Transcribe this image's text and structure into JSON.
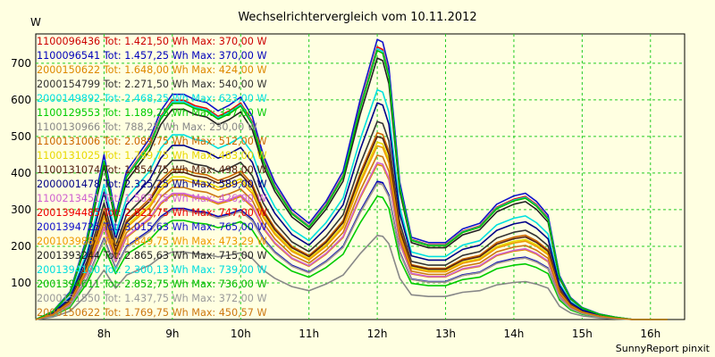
{
  "chart_data": {
    "type": "line",
    "title": "Wechselrichtervergleich vom 10.11.2012",
    "ylabel": "W",
    "footer": "SunnyReport pinxit",
    "xlim": [
      7.0,
      16.5
    ],
    "ylim": [
      0,
      780
    ],
    "grid": true,
    "legend_position": "top-left",
    "x_ticks": [
      {
        "value": 8,
        "label": "8h"
      },
      {
        "value": 9,
        "label": "9h"
      },
      {
        "value": 10,
        "label": "10h"
      },
      {
        "value": 11,
        "label": "11h"
      },
      {
        "value": 12,
        "label": "12h"
      },
      {
        "value": 13,
        "label": "13h"
      },
      {
        "value": 14,
        "label": "14h"
      },
      {
        "value": 15,
        "label": "15h"
      },
      {
        "value": 16,
        "label": "16h"
      }
    ],
    "y_ticks": [
      100,
      200,
      300,
      400,
      500,
      600,
      700
    ],
    "x": [
      7.0,
      7.25,
      7.5,
      7.75,
      8.0,
      8.17,
      8.33,
      8.5,
      8.67,
      8.83,
      9.0,
      9.17,
      9.33,
      9.5,
      9.67,
      9.83,
      10.0,
      10.17,
      10.33,
      10.5,
      10.75,
      11.0,
      11.25,
      11.5,
      11.75,
      12.0,
      12.08,
      12.17,
      12.33,
      12.5,
      12.75,
      13.0,
      13.25,
      13.5,
      13.75,
      14.0,
      14.17,
      14.33,
      14.5,
      14.67,
      14.83,
      15.0,
      15.25,
      15.5,
      15.75,
      16.0,
      16.25
    ],
    "base_profile": [
      0,
      15,
      50,
      150,
      300,
      190,
      270,
      300,
      330,
      380,
      410,
      410,
      400,
      395,
      380,
      390,
      405,
      370,
      300,
      250,
      200,
      175,
      215,
      270,
      400,
      510,
      505,
      460,
      250,
      150,
      140,
      140,
      165,
      175,
      210,
      225,
      230,
      215,
      190,
      80,
      40,
      22,
      10,
      4,
      0,
      0,
      0
    ],
    "series": [
      {
        "label": "1100096436 Tot: 1.421,50 Wh Max: 370,00 W",
        "color": "#cc0000",
        "scale": 0.73
      },
      {
        "label": "1100096541 Tot: 1.457,25 Wh Max: 370,00 W",
        "color": "#0000bb",
        "scale": 0.74
      },
      {
        "label": "2000150622 Tot: 1.648,00 Wh Max: 424,00 W",
        "color": "#dd8800",
        "scale": 0.83
      },
      {
        "label": "2000154799 Tot: 2.271,50 Wh Max: 540,00 W",
        "color": "#333333",
        "scale": 1.06
      },
      {
        "label": "2000149892 Tot: 2.468,25 Wh Max: 623,00 W",
        "color": "#00e0e0",
        "scale": 1.23
      },
      {
        "label": "1100129553 Tot: 1.189,25 Wh Max: 337,00 W",
        "color": "#00cc00",
        "scale": 0.66
      },
      {
        "label": "1100130966 Tot: 788,25 Wh Max: 230,00 W",
        "color": "#888888",
        "scale": 0.45
      },
      {
        "label": "1100131006 Tot: 2.089,75 Wh Max: 512,00 W",
        "color": "#cc6600",
        "scale": 1.0
      },
      {
        "label": "1100131025 Tot: 1.799,75 Wh Max: 483,00 W",
        "color": "#e8d800",
        "scale": 0.95
      },
      {
        "label": "1100131074 Tot: 1.854,75 Wh Max: 498,00 W",
        "color": "#552211",
        "scale": 0.98
      },
      {
        "label": "2000001478 Tot: 2.325,25 Wh Max: 589,00 W",
        "color": "#000088",
        "scale": 1.16
      },
      {
        "label": "1100213451 Tot: 1.563,75 Wh Max: 426,00 W",
        "color": "#d060d0",
        "scale": 0.84
      },
      {
        "label": "2001394485 Tot: 2.821,75 Wh Max: 747,00 W",
        "color": "#ee0000",
        "scale": 1.46
      },
      {
        "label": "2001394725 Tot: 3.015,63 Wh Max: 765,00 W",
        "color": "#1111cc",
        "scale": 1.5
      },
      {
        "label": "2001039885 Tot: 1.849,75 Wh Max: 473,29 W",
        "color": "#ee9900",
        "scale": 0.93
      },
      {
        "label": "2001393244 Tot: 2.865,63 Wh Max: 715,00 W",
        "color": "#222222",
        "scale": 1.4
      },
      {
        "label": "2001394100 Tot: 2.300,13 Wh Max: 739,00 W",
        "color": "#00dddd",
        "scale": 1.45
      },
      {
        "label": "2001394611 Tot: 2.852,75 Wh Max: 736,00 W",
        "color": "#00bb00",
        "scale": 1.44
      },
      {
        "label": "2000151550 Tot: 1.437,75 Wh Max: 372,00 W",
        "color": "#999999",
        "scale": 0.73
      },
      {
        "label": "2000150622 Tot: 1.769,75 Wh Max: 450,57 W",
        "color": "#cc7711",
        "scale": 0.88
      }
    ]
  }
}
